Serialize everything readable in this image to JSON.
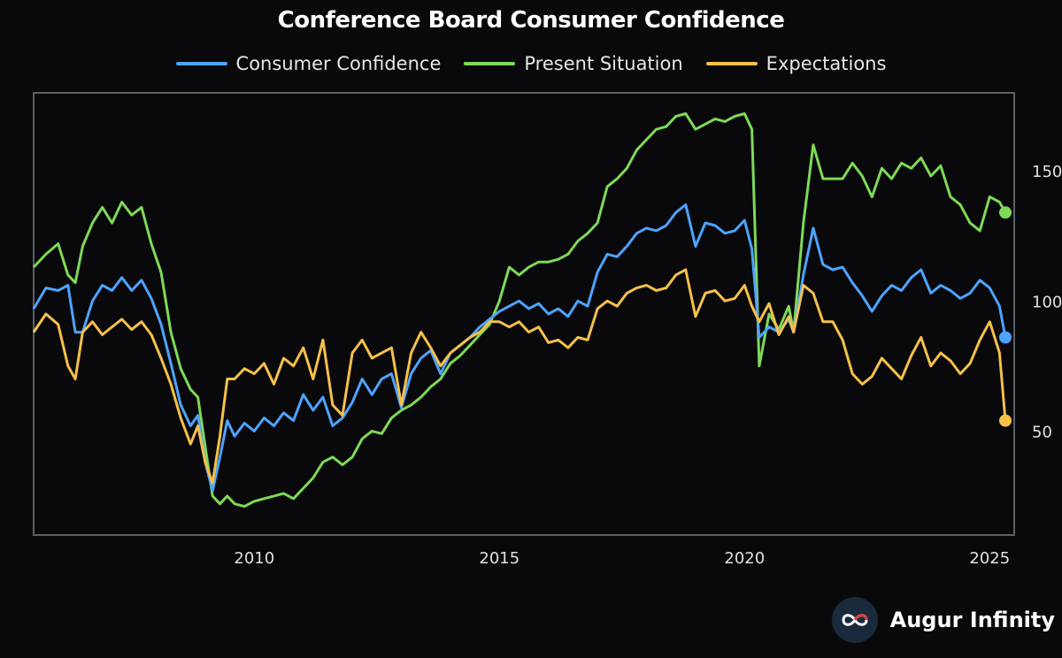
{
  "chart_data": {
    "type": "line",
    "title": "Conference Board Consumer Confidence",
    "xlabel": "",
    "ylabel": "",
    "xlim": [
      2005.5,
      2025.5
    ],
    "ylim": [
      10,
      180
    ],
    "x_ticks": [
      2010,
      2015,
      2020,
      2025
    ],
    "x_tick_labels": [
      "2010",
      "2015",
      "2020",
      "2025"
    ],
    "y_ticks": [
      50,
      100,
      150
    ],
    "y_tick_labels": [
      "50",
      "100",
      "150"
    ],
    "y_axis_side": "right",
    "legend_position": "top-center",
    "series": [
      {
        "name": "Consumer Confidence",
        "color": "#4da3ff",
        "end_marker": true,
        "points": [
          [
            2005.5,
            97
          ],
          [
            2005.75,
            105
          ],
          [
            2006.0,
            104
          ],
          [
            2006.2,
            106
          ],
          [
            2006.35,
            88
          ],
          [
            2006.5,
            88
          ],
          [
            2006.7,
            100
          ],
          [
            2006.9,
            106
          ],
          [
            2007.1,
            104
          ],
          [
            2007.3,
            109
          ],
          [
            2007.5,
            104
          ],
          [
            2007.7,
            108
          ],
          [
            2007.9,
            101
          ],
          [
            2008.1,
            91
          ],
          [
            2008.3,
            76
          ],
          [
            2008.5,
            60
          ],
          [
            2008.7,
            52
          ],
          [
            2008.85,
            56
          ],
          [
            2009.0,
            38
          ],
          [
            2009.15,
            27
          ],
          [
            2009.3,
            40
          ],
          [
            2009.45,
            54
          ],
          [
            2009.6,
            48
          ],
          [
            2009.8,
            53
          ],
          [
            2010.0,
            50
          ],
          [
            2010.2,
            55
          ],
          [
            2010.4,
            52
          ],
          [
            2010.6,
            57
          ],
          [
            2010.8,
            54
          ],
          [
            2011.0,
            64
          ],
          [
            2011.2,
            58
          ],
          [
            2011.4,
            63
          ],
          [
            2011.6,
            52
          ],
          [
            2011.8,
            55
          ],
          [
            2012.0,
            61
          ],
          [
            2012.2,
            70
          ],
          [
            2012.4,
            64
          ],
          [
            2012.6,
            70
          ],
          [
            2012.8,
            72
          ],
          [
            2013.0,
            59
          ],
          [
            2013.2,
            72
          ],
          [
            2013.4,
            78
          ],
          [
            2013.6,
            81
          ],
          [
            2013.8,
            72
          ],
          [
            2014.0,
            80
          ],
          [
            2014.2,
            83
          ],
          [
            2014.4,
            86
          ],
          [
            2014.6,
            90
          ],
          [
            2014.8,
            93
          ],
          [
            2015.0,
            96
          ],
          [
            2015.2,
            98
          ],
          [
            2015.4,
            100
          ],
          [
            2015.6,
            97
          ],
          [
            2015.8,
            99
          ],
          [
            2016.0,
            95
          ],
          [
            2016.2,
            97
          ],
          [
            2016.4,
            94
          ],
          [
            2016.6,
            100
          ],
          [
            2016.8,
            98
          ],
          [
            2017.0,
            111
          ],
          [
            2017.2,
            118
          ],
          [
            2017.4,
            117
          ],
          [
            2017.6,
            121
          ],
          [
            2017.8,
            126
          ],
          [
            2018.0,
            128
          ],
          [
            2018.2,
            127
          ],
          [
            2018.4,
            129
          ],
          [
            2018.6,
            134
          ],
          [
            2018.8,
            137
          ],
          [
            2019.0,
            121
          ],
          [
            2019.2,
            130
          ],
          [
            2019.4,
            129
          ],
          [
            2019.6,
            126
          ],
          [
            2019.8,
            127
          ],
          [
            2020.0,
            131
          ],
          [
            2020.15,
            120
          ],
          [
            2020.3,
            86
          ],
          [
            2020.5,
            90
          ],
          [
            2020.7,
            88
          ],
          [
            2020.9,
            93
          ],
          [
            2021.0,
            88
          ],
          [
            2021.2,
            110
          ],
          [
            2021.4,
            128
          ],
          [
            2021.6,
            114
          ],
          [
            2021.8,
            112
          ],
          [
            2022.0,
            113
          ],
          [
            2022.2,
            107
          ],
          [
            2022.4,
            102
          ],
          [
            2022.6,
            96
          ],
          [
            2022.8,
            102
          ],
          [
            2023.0,
            106
          ],
          [
            2023.2,
            104
          ],
          [
            2023.4,
            109
          ],
          [
            2023.6,
            112
          ],
          [
            2023.8,
            103
          ],
          [
            2024.0,
            106
          ],
          [
            2024.2,
            104
          ],
          [
            2024.4,
            101
          ],
          [
            2024.6,
            103
          ],
          [
            2024.8,
            108
          ],
          [
            2025.0,
            105
          ],
          [
            2025.2,
            98
          ],
          [
            2025.32,
            86
          ]
        ]
      },
      {
        "name": "Present Situation",
        "color": "#7ed957",
        "end_marker": true,
        "points": [
          [
            2005.5,
            113
          ],
          [
            2005.75,
            118
          ],
          [
            2006.0,
            122
          ],
          [
            2006.2,
            110
          ],
          [
            2006.35,
            107
          ],
          [
            2006.5,
            121
          ],
          [
            2006.7,
            130
          ],
          [
            2006.9,
            136
          ],
          [
            2007.1,
            130
          ],
          [
            2007.3,
            138
          ],
          [
            2007.5,
            133
          ],
          [
            2007.7,
            136
          ],
          [
            2007.9,
            122
          ],
          [
            2008.1,
            111
          ],
          [
            2008.3,
            88
          ],
          [
            2008.5,
            74
          ],
          [
            2008.7,
            66
          ],
          [
            2008.85,
            63
          ],
          [
            2009.0,
            44
          ],
          [
            2009.15,
            25
          ],
          [
            2009.3,
            22
          ],
          [
            2009.45,
            25
          ],
          [
            2009.6,
            22
          ],
          [
            2009.8,
            21
          ],
          [
            2010.0,
            23
          ],
          [
            2010.2,
            24
          ],
          [
            2010.4,
            25
          ],
          [
            2010.6,
            26
          ],
          [
            2010.8,
            24
          ],
          [
            2011.0,
            28
          ],
          [
            2011.2,
            32
          ],
          [
            2011.4,
            38
          ],
          [
            2011.6,
            40
          ],
          [
            2011.8,
            37
          ],
          [
            2012.0,
            40
          ],
          [
            2012.2,
            47
          ],
          [
            2012.4,
            50
          ],
          [
            2012.6,
            49
          ],
          [
            2012.8,
            55
          ],
          [
            2013.0,
            58
          ],
          [
            2013.2,
            60
          ],
          [
            2013.4,
            63
          ],
          [
            2013.6,
            67
          ],
          [
            2013.8,
            70
          ],
          [
            2014.0,
            76
          ],
          [
            2014.2,
            79
          ],
          [
            2014.4,
            83
          ],
          [
            2014.6,
            87
          ],
          [
            2014.8,
            91
          ],
          [
            2015.0,
            100
          ],
          [
            2015.2,
            113
          ],
          [
            2015.4,
            110
          ],
          [
            2015.6,
            113
          ],
          [
            2015.8,
            115
          ],
          [
            2016.0,
            115
          ],
          [
            2016.2,
            116
          ],
          [
            2016.4,
            118
          ],
          [
            2016.6,
            123
          ],
          [
            2016.8,
            126
          ],
          [
            2017.0,
            130
          ],
          [
            2017.2,
            144
          ],
          [
            2017.4,
            147
          ],
          [
            2017.6,
            151
          ],
          [
            2017.8,
            158
          ],
          [
            2018.0,
            162
          ],
          [
            2018.2,
            166
          ],
          [
            2018.4,
            167
          ],
          [
            2018.6,
            171
          ],
          [
            2018.8,
            172
          ],
          [
            2019.0,
            166
          ],
          [
            2019.2,
            168
          ],
          [
            2019.4,
            170
          ],
          [
            2019.6,
            169
          ],
          [
            2019.8,
            171
          ],
          [
            2020.0,
            172
          ],
          [
            2020.15,
            166
          ],
          [
            2020.3,
            75
          ],
          [
            2020.5,
            95
          ],
          [
            2020.7,
            89
          ],
          [
            2020.9,
            98
          ],
          [
            2021.0,
            88
          ],
          [
            2021.2,
            130
          ],
          [
            2021.4,
            160
          ],
          [
            2021.6,
            147
          ],
          [
            2021.8,
            147
          ],
          [
            2022.0,
            147
          ],
          [
            2022.2,
            153
          ],
          [
            2022.4,
            148
          ],
          [
            2022.6,
            140
          ],
          [
            2022.8,
            151
          ],
          [
            2023.0,
            147
          ],
          [
            2023.2,
            153
          ],
          [
            2023.4,
            151
          ],
          [
            2023.6,
            155
          ],
          [
            2023.8,
            148
          ],
          [
            2024.0,
            152
          ],
          [
            2024.2,
            140
          ],
          [
            2024.4,
            137
          ],
          [
            2024.6,
            130
          ],
          [
            2024.8,
            127
          ],
          [
            2025.0,
            140
          ],
          [
            2025.2,
            138
          ],
          [
            2025.32,
            134
          ]
        ]
      },
      {
        "name": "Expectations",
        "color": "#f5c04a",
        "end_marker": true,
        "points": [
          [
            2005.5,
            88
          ],
          [
            2005.75,
            95
          ],
          [
            2006.0,
            91
          ],
          [
            2006.2,
            75
          ],
          [
            2006.35,
            70
          ],
          [
            2006.5,
            88
          ],
          [
            2006.7,
            92
          ],
          [
            2006.9,
            87
          ],
          [
            2007.1,
            90
          ],
          [
            2007.3,
            93
          ],
          [
            2007.5,
            89
          ],
          [
            2007.7,
            92
          ],
          [
            2007.9,
            87
          ],
          [
            2008.1,
            78
          ],
          [
            2008.3,
            68
          ],
          [
            2008.5,
            55
          ],
          [
            2008.7,
            45
          ],
          [
            2008.85,
            52
          ],
          [
            2009.0,
            38
          ],
          [
            2009.15,
            30
          ],
          [
            2009.3,
            48
          ],
          [
            2009.45,
            70
          ],
          [
            2009.6,
            70
          ],
          [
            2009.8,
            74
          ],
          [
            2010.0,
            72
          ],
          [
            2010.2,
            76
          ],
          [
            2010.4,
            68
          ],
          [
            2010.6,
            78
          ],
          [
            2010.8,
            75
          ],
          [
            2011.0,
            82
          ],
          [
            2011.2,
            70
          ],
          [
            2011.4,
            85
          ],
          [
            2011.6,
            60
          ],
          [
            2011.8,
            56
          ],
          [
            2012.0,
            80
          ],
          [
            2012.2,
            85
          ],
          [
            2012.4,
            78
          ],
          [
            2012.6,
            80
          ],
          [
            2012.8,
            82
          ],
          [
            2013.0,
            60
          ],
          [
            2013.2,
            80
          ],
          [
            2013.4,
            88
          ],
          [
            2013.6,
            82
          ],
          [
            2013.8,
            75
          ],
          [
            2014.0,
            80
          ],
          [
            2014.2,
            83
          ],
          [
            2014.4,
            86
          ],
          [
            2014.6,
            88
          ],
          [
            2014.8,
            92
          ],
          [
            2015.0,
            92
          ],
          [
            2015.2,
            90
          ],
          [
            2015.4,
            92
          ],
          [
            2015.6,
            88
          ],
          [
            2015.8,
            90
          ],
          [
            2016.0,
            84
          ],
          [
            2016.2,
            85
          ],
          [
            2016.4,
            82
          ],
          [
            2016.6,
            86
          ],
          [
            2016.8,
            85
          ],
          [
            2017.0,
            97
          ],
          [
            2017.2,
            100
          ],
          [
            2017.4,
            98
          ],
          [
            2017.6,
            103
          ],
          [
            2017.8,
            105
          ],
          [
            2018.0,
            106
          ],
          [
            2018.2,
            104
          ],
          [
            2018.4,
            105
          ],
          [
            2018.6,
            110
          ],
          [
            2018.8,
            112
          ],
          [
            2019.0,
            94
          ],
          [
            2019.2,
            103
          ],
          [
            2019.4,
            104
          ],
          [
            2019.6,
            100
          ],
          [
            2019.8,
            101
          ],
          [
            2020.0,
            106
          ],
          [
            2020.15,
            98
          ],
          [
            2020.3,
            92
          ],
          [
            2020.5,
            99
          ],
          [
            2020.7,
            87
          ],
          [
            2020.9,
            94
          ],
          [
            2021.0,
            88
          ],
          [
            2021.2,
            106
          ],
          [
            2021.4,
            103
          ],
          [
            2021.6,
            92
          ],
          [
            2021.8,
            92
          ],
          [
            2022.0,
            85
          ],
          [
            2022.2,
            72
          ],
          [
            2022.4,
            68
          ],
          [
            2022.6,
            71
          ],
          [
            2022.8,
            78
          ],
          [
            2023.0,
            74
          ],
          [
            2023.2,
            70
          ],
          [
            2023.4,
            79
          ],
          [
            2023.6,
            86
          ],
          [
            2023.8,
            75
          ],
          [
            2024.0,
            80
          ],
          [
            2024.2,
            77
          ],
          [
            2024.4,
            72
          ],
          [
            2024.6,
            76
          ],
          [
            2024.8,
            85
          ],
          [
            2025.0,
            92
          ],
          [
            2025.2,
            80
          ],
          [
            2025.32,
            54
          ]
        ]
      }
    ]
  },
  "brand": {
    "name": "Augur Infinity",
    "logo": "infinity-logo-icon"
  }
}
